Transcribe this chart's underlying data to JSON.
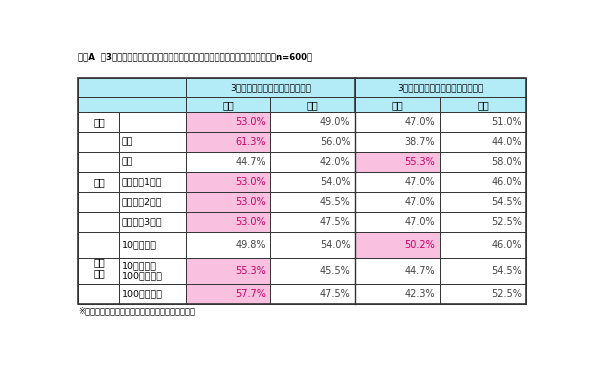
{
  "title": "図表A  第3回「若手社員の仕事・会社に対する満足度」調査　／　勤続意欲　　（n=600）",
  "footnote": "※背景色付きは、各項目の過半数意見（今回のみ）",
  "header1_left": "3年後も勤務し続けていると思う",
  "header1_right": "3年後は勤務し続けていないと思う",
  "header2": [
    "今回",
    "前回",
    "今回",
    "前回"
  ],
  "rows": [
    {
      "group": "全体",
      "sub": "",
      "vals": [
        "53.0%",
        "49.0%",
        "47.0%",
        "51.0%"
      ],
      "highlight": [
        0,
        -1,
        -1,
        -1
      ]
    },
    {
      "group": "属性",
      "sub": "男性",
      "vals": [
        "61.3%",
        "56.0%",
        "38.7%",
        "44.0%"
      ],
      "highlight": [
        0,
        -1,
        -1,
        -1
      ]
    },
    {
      "group": "",
      "sub": "女性",
      "vals": [
        "44.7%",
        "42.0%",
        "55.3%",
        "58.0%"
      ],
      "highlight": [
        -1,
        -1,
        2,
        -1
      ]
    },
    {
      "group": "",
      "sub": "新卒入社1年目",
      "vals": [
        "53.0%",
        "54.0%",
        "47.0%",
        "46.0%"
      ],
      "highlight": [
        0,
        -1,
        -1,
        -1
      ]
    },
    {
      "group": "",
      "sub": "新卒入社2年目",
      "vals": [
        "53.0%",
        "45.5%",
        "47.0%",
        "54.5%"
      ],
      "highlight": [
        0,
        -1,
        -1,
        -1
      ]
    },
    {
      "group": "",
      "sub": "新卒入社3年目",
      "vals": [
        "53.0%",
        "47.5%",
        "47.0%",
        "52.5%"
      ],
      "highlight": [
        0,
        -1,
        -1,
        -1
      ]
    },
    {
      "group": "売上\n規模",
      "sub": "10億円未満",
      "vals": [
        "49.8%",
        "54.0%",
        "50.2%",
        "46.0%"
      ],
      "highlight": [
        -1,
        -1,
        2,
        -1
      ]
    },
    {
      "group": "",
      "sub": "10億円以上\n100億円未満",
      "vals": [
        "55.3%",
        "45.5%",
        "44.7%",
        "54.5%"
      ],
      "highlight": [
        0,
        -1,
        -1,
        -1
      ]
    },
    {
      "group": "",
      "sub": "100億円以上",
      "vals": [
        "57.7%",
        "47.5%",
        "42.3%",
        "52.5%"
      ],
      "highlight": [
        0,
        -1,
        -1,
        -1
      ]
    }
  ],
  "color_header": "#b3ecf7",
  "color_pink": "#f9c0e0",
  "color_border": "#333333",
  "color_title_text": "#000000",
  "color_data_text": "#cc0066"
}
